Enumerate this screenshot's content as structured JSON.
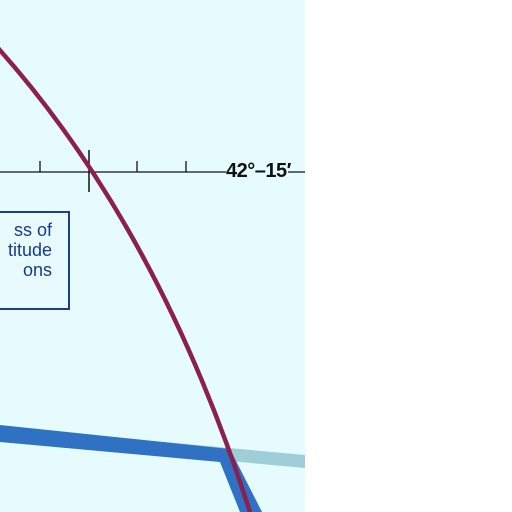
{
  "map": {
    "latitude_label": "42°–15′",
    "note_lines": [
      "ss of",
      "titude",
      "ons"
    ],
    "colors": {
      "water_tint": "#e6fbfd",
      "boundary_line": "#8b1f4f",
      "blue_band": "#2f72c4",
      "pale_band": "#9fcdd8",
      "note_text": "#173b8c",
      "graticule": "#111111"
    }
  }
}
